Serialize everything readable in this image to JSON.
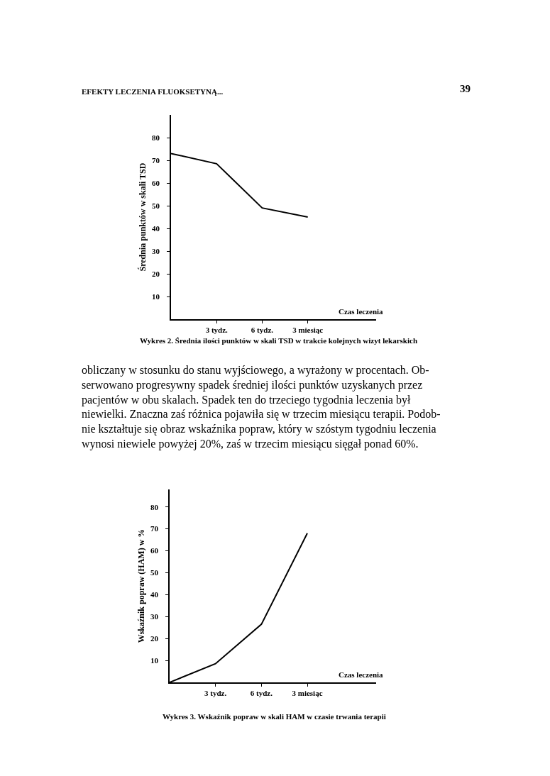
{
  "chart_data": [
    {
      "type": "line",
      "xlabel": "Czas leczenia",
      "ylabel": "Średnia punktów w skali TSD",
      "categories": [
        null,
        "3 tydz.",
        "6 tydz.",
        "3 miesiąc"
      ],
      "values": [
        73,
        68.5,
        49,
        45
      ],
      "color": "#000000",
      "ylim": [
        0,
        90
      ],
      "yticks": [
        10,
        20,
        30,
        40,
        50,
        60,
        70,
        80
      ],
      "annotations": [
        "EFEKTY LECZENIA FLUOKSETYNĄ...",
        "39",
        "Wykres 2. Średnia ilości punktów w skali TSD w trakcie kolejnych wizyt lekarskich",
        "obliczany w stosunku do stanu wyjściowego, a wyrażony w procentach. Ob-\nserwowano progresywny spadek średniej ilości punktów uzyskanych przez\npacjentów w obu skalach. Spadek ten do trzeciego tygodnia leczenia był\nniewielki. Znaczna zaś różnica pojawiła się w trzecim miesiącu terapii. Podob-\nnie kształtuje się obraz wskaźnika popraw, który w szóstym tygodniu leczenia\nwynosi niewiele powyżej 20%, zaś w trzecim miesiącu sięgał ponad 60%."
      ]
    },
    {
      "type": "line",
      "xlabel": "Czas leczenia",
      "ylabel": "Wskaźnik popraw (HAM) w %",
      "categories": [
        null,
        "3 tydz.",
        "6 tydz.",
        "3 miesiąc"
      ],
      "values": [
        0,
        8.5,
        26.5,
        68
      ],
      "color": "#000000",
      "ylim": [
        0,
        88
      ],
      "yticks": [
        10,
        20,
        30,
        40,
        50,
        60,
        70,
        80
      ],
      "annotations": [
        "Wykres 3. Wskaźnik popraw w skali HAM w czasie trwania terapii"
      ]
    }
  ]
}
